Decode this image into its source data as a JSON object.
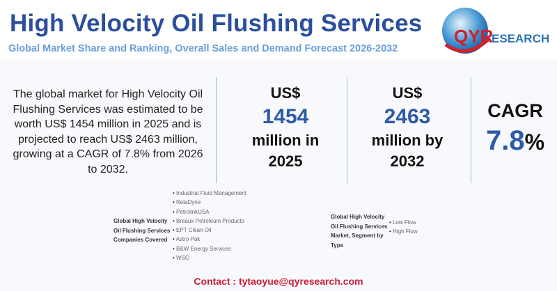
{
  "header": {
    "title": "High Velocity Oil Flushing Services",
    "subtitle": "Global Market Share and Ranking, Overall Sales and Demand Forecast 2026-2032",
    "logo_text": "QYRESEARCH"
  },
  "summary": "The global market for High Velocity Oil Flushing Services was estimated to be worth US$ 1454 million in 2025 and is projected to reach US$ 2463 million, growing at a CAGR of 7.8% from 2026 to 2032.",
  "stats": [
    {
      "currency": "US$",
      "value": "1454",
      "line1": "million in",
      "line2": "2025"
    },
    {
      "currency": "US$",
      "value": "2463",
      "line1": "million by",
      "line2": "2032"
    }
  ],
  "cagr": {
    "label": "CAGR",
    "value": "7.8",
    "unit": "%"
  },
  "companies": {
    "label_lines": [
      "Global High Velocity",
      "Oil Flushing Services",
      "Companies Covered"
    ],
    "items": [
      "Industrial Fluid Management",
      "RelaDyne",
      "PetrolinkUSA",
      "Breaux Petroleum Products",
      "EPT Clean Oil",
      "Astro Pak",
      "B&W Energy Services",
      "WSG"
    ]
  },
  "segments": {
    "label_lines": [
      "Global High Velocity",
      "Oil Flushing Services",
      "Market, Segment by",
      "Type"
    ],
    "items": [
      "Low Flow",
      "High Flow"
    ]
  },
  "contact": "Contact : tytaoyue@qyresearch.com",
  "colors": {
    "title": "#2b4f9e",
    "subtitle": "#6aa0d8",
    "accent": "#2f5aa8",
    "contact": "#c81e35"
  }
}
